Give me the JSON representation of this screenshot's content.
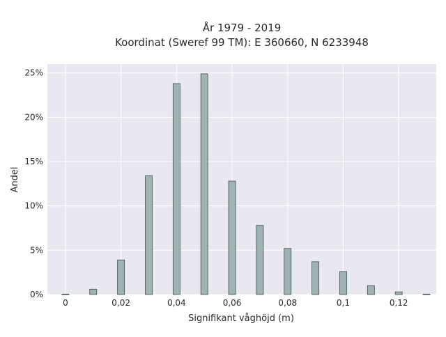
{
  "chart_data": {
    "type": "bar",
    "title_line1": "År 1979 - 2019",
    "title_line2": "Koordinat (Sweref 99 TM): E 360660, N 6233948",
    "xlabel": "Signifikant våghöjd (m)",
    "ylabel": "Andel",
    "x": [
      0,
      0.01,
      0.02,
      0.03,
      0.04,
      0.05,
      0.06,
      0.07,
      0.08,
      0.09,
      0.1,
      0.11,
      0.12,
      0.13
    ],
    "values": [
      0.05,
      0.6,
      3.9,
      13.4,
      23.8,
      24.9,
      12.8,
      7.8,
      5.2,
      3.7,
      2.6,
      1.0,
      0.3,
      0.05
    ],
    "xlim": [
      -0.0065,
      0.1335
    ],
    "ylim": [
      0,
      26
    ],
    "x_ticks": [
      0,
      0.02,
      0.04,
      0.06,
      0.08,
      0.1,
      0.12
    ],
    "x_tick_labels": [
      "0",
      "0,02",
      "0,04",
      "0,06",
      "0,08",
      "0,1",
      "0,12"
    ],
    "y_ticks": [
      0,
      5,
      10,
      15,
      20,
      25
    ],
    "y_tick_labels": [
      "0%",
      "5%",
      "10%",
      "15%",
      "20%",
      "25%"
    ],
    "grid": true,
    "colors": {
      "plot_background": "#e8e8f0",
      "grid": "#ffffff",
      "bar_fill": "#9fb3b3",
      "bar_stroke": "#3f4f4f"
    }
  }
}
